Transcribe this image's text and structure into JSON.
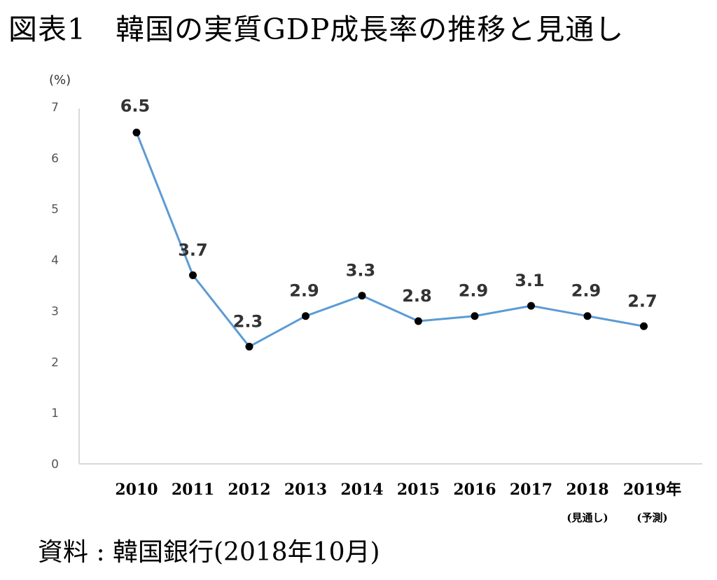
{
  "title": "図表1　韓国の実質GDP成長率の推移と見通し",
  "source": "資料 : 韓国銀行(2018年10月)",
  "colors": {
    "line": "#5b9bd5",
    "marker": "#000000",
    "axis": "#d9d9d9"
  },
  "chart_data": {
    "type": "line",
    "unit_label": "(%)",
    "categories": [
      "2010",
      "2011",
      "2012",
      "2013",
      "2014",
      "2015",
      "2016",
      "2017",
      "2018",
      "2019年"
    ],
    "category_notes": [
      "",
      "",
      "",
      "",
      "",
      "",
      "",
      "",
      "(見通し)",
      "(予測)"
    ],
    "values": [
      6.5,
      3.7,
      2.3,
      2.9,
      3.3,
      2.8,
      2.9,
      3.1,
      2.9,
      2.7
    ],
    "data_labels": [
      "6.5",
      "3.7",
      "2.3",
      "2.9",
      "3.3",
      "2.8",
      "2.9",
      "3.1",
      "2.9",
      "2.7"
    ],
    "yticks": [
      "0",
      "1",
      "2",
      "3",
      "4",
      "5",
      "6",
      "7"
    ],
    "ylim": [
      0,
      7
    ],
    "grid": false,
    "markers": true
  }
}
